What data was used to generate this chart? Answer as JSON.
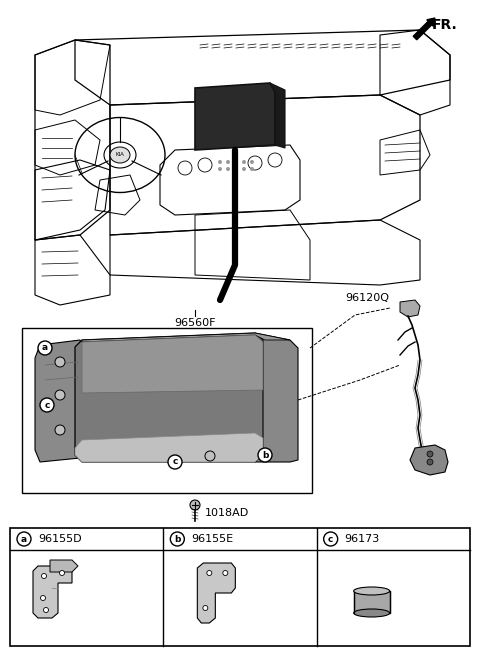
{
  "bg_color": "#ffffff",
  "line_color": "#000000",
  "fr_label": "FR.",
  "part_labels": {
    "main_unit": "96560F",
    "cable": "96120Q",
    "screw": "1018AD"
  },
  "bottom_table": {
    "cols": [
      {
        "letter": "a",
        "code": "96155D"
      },
      {
        "letter": "b",
        "code": "96155E"
      },
      {
        "letter": "c",
        "code": "96173"
      }
    ]
  },
  "fig_width": 4.8,
  "fig_height": 6.56,
  "dpi": 100
}
